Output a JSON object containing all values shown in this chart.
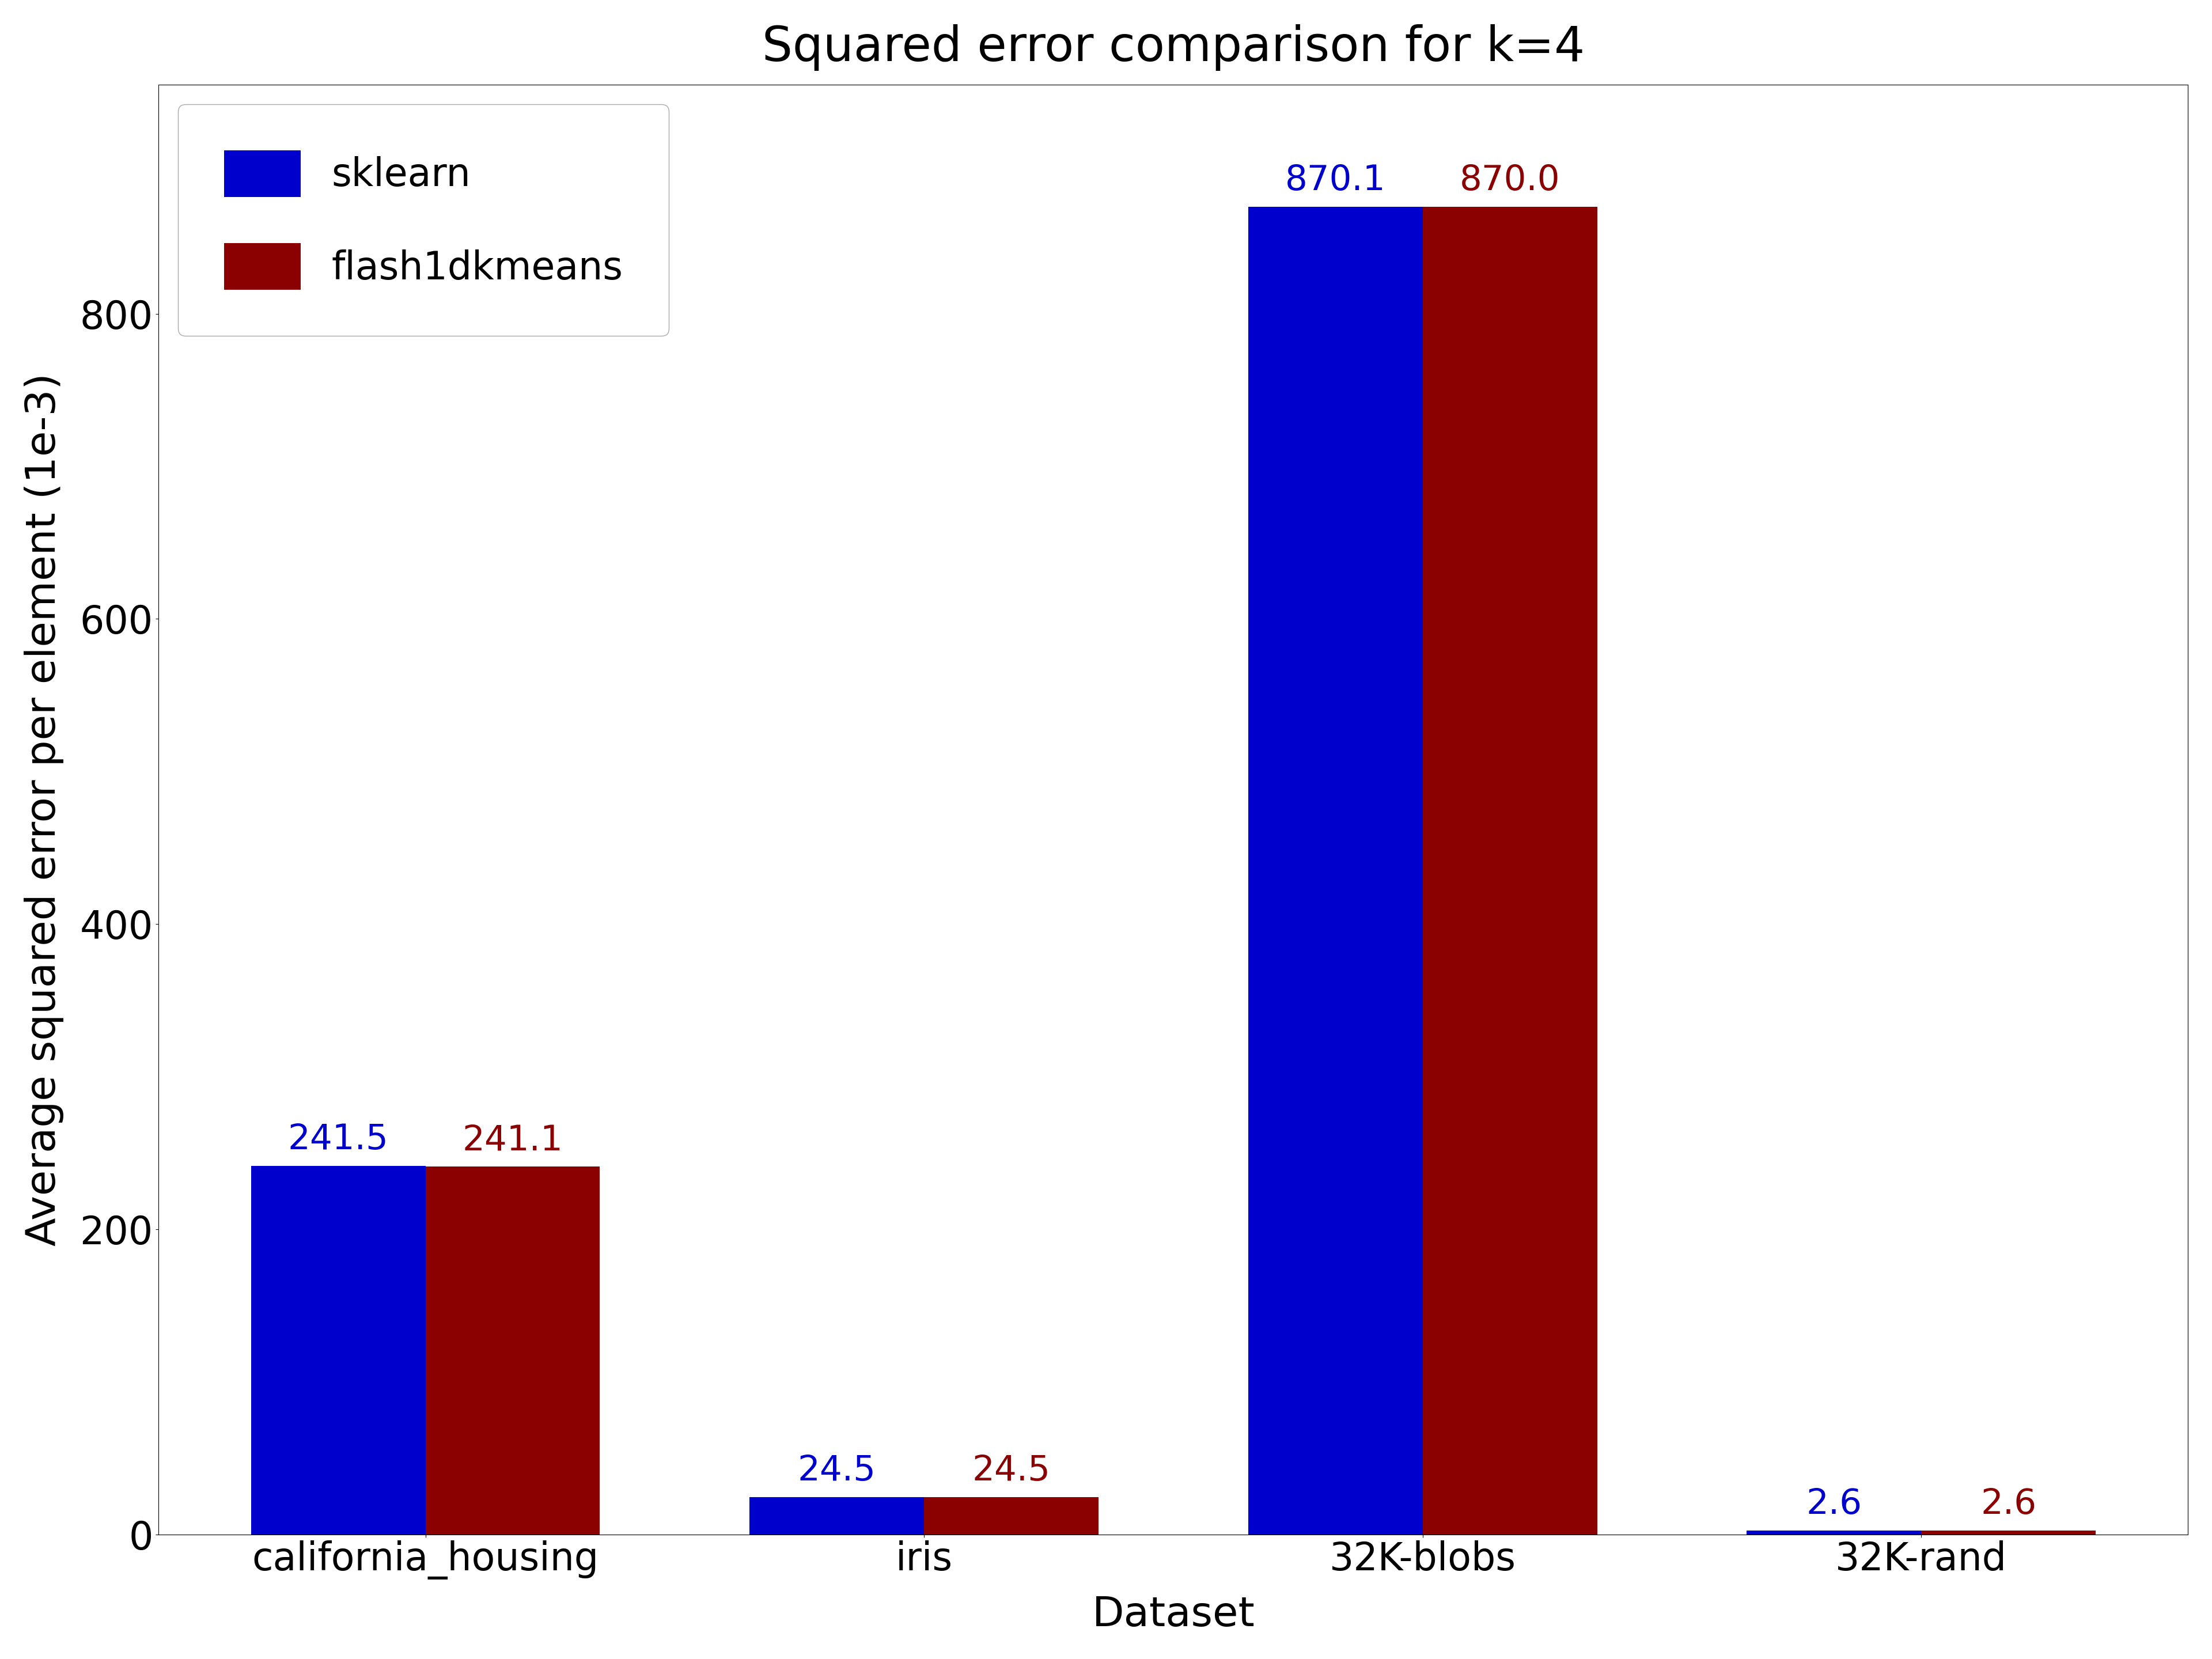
{
  "title": "Squared error comparison for k=4",
  "xlabel": "Dataset",
  "ylabel": "Average squared error per element (1e-3)",
  "categories": [
    "california_housing",
    "iris",
    "32K-blobs",
    "32K-rand"
  ],
  "sklearn_values": [
    241.5,
    24.5,
    870.1,
    2.6
  ],
  "flash_values": [
    241.1,
    24.5,
    870.0,
    2.6
  ],
  "sklearn_color": "#0000CC",
  "flash_color": "#8B0000",
  "bar_width": 0.35,
  "legend_labels": [
    "sklearn",
    "flash1dkmeans"
  ],
  "title_fontsize": 60,
  "label_fontsize": 52,
  "tick_fontsize": 48,
  "legend_fontsize": 48,
  "annotation_fontsize": 44,
  "ylim": [
    0,
    950
  ],
  "background_color": "#ffffff"
}
